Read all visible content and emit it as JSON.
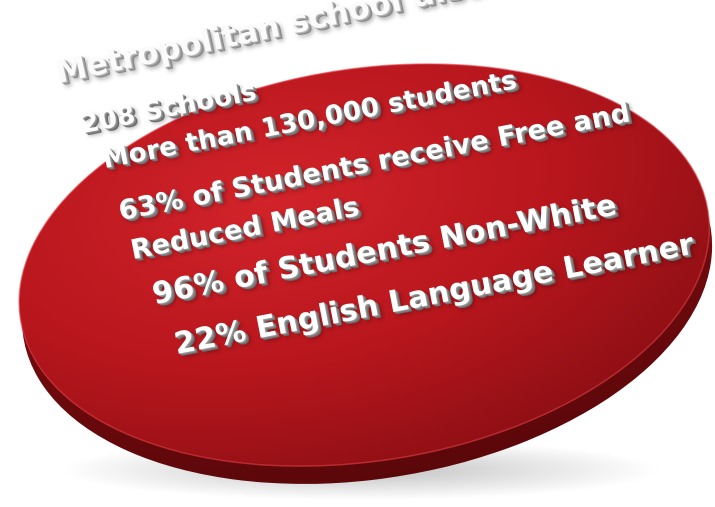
{
  "title": "Metropolitan school district",
  "items": [
    "208 Schools",
    "More than 130,000 students",
    "63% of Students receive Free and",
    "Reduced Meals",
    "96% of Students Non-White",
    "22% English Language Learner"
  ],
  "colors": {
    "disc_top_light": "#d2232a",
    "disc_top_dark": "#8e0f14",
    "disc_rim": "#6e0a0e",
    "text": "#ffffff"
  }
}
